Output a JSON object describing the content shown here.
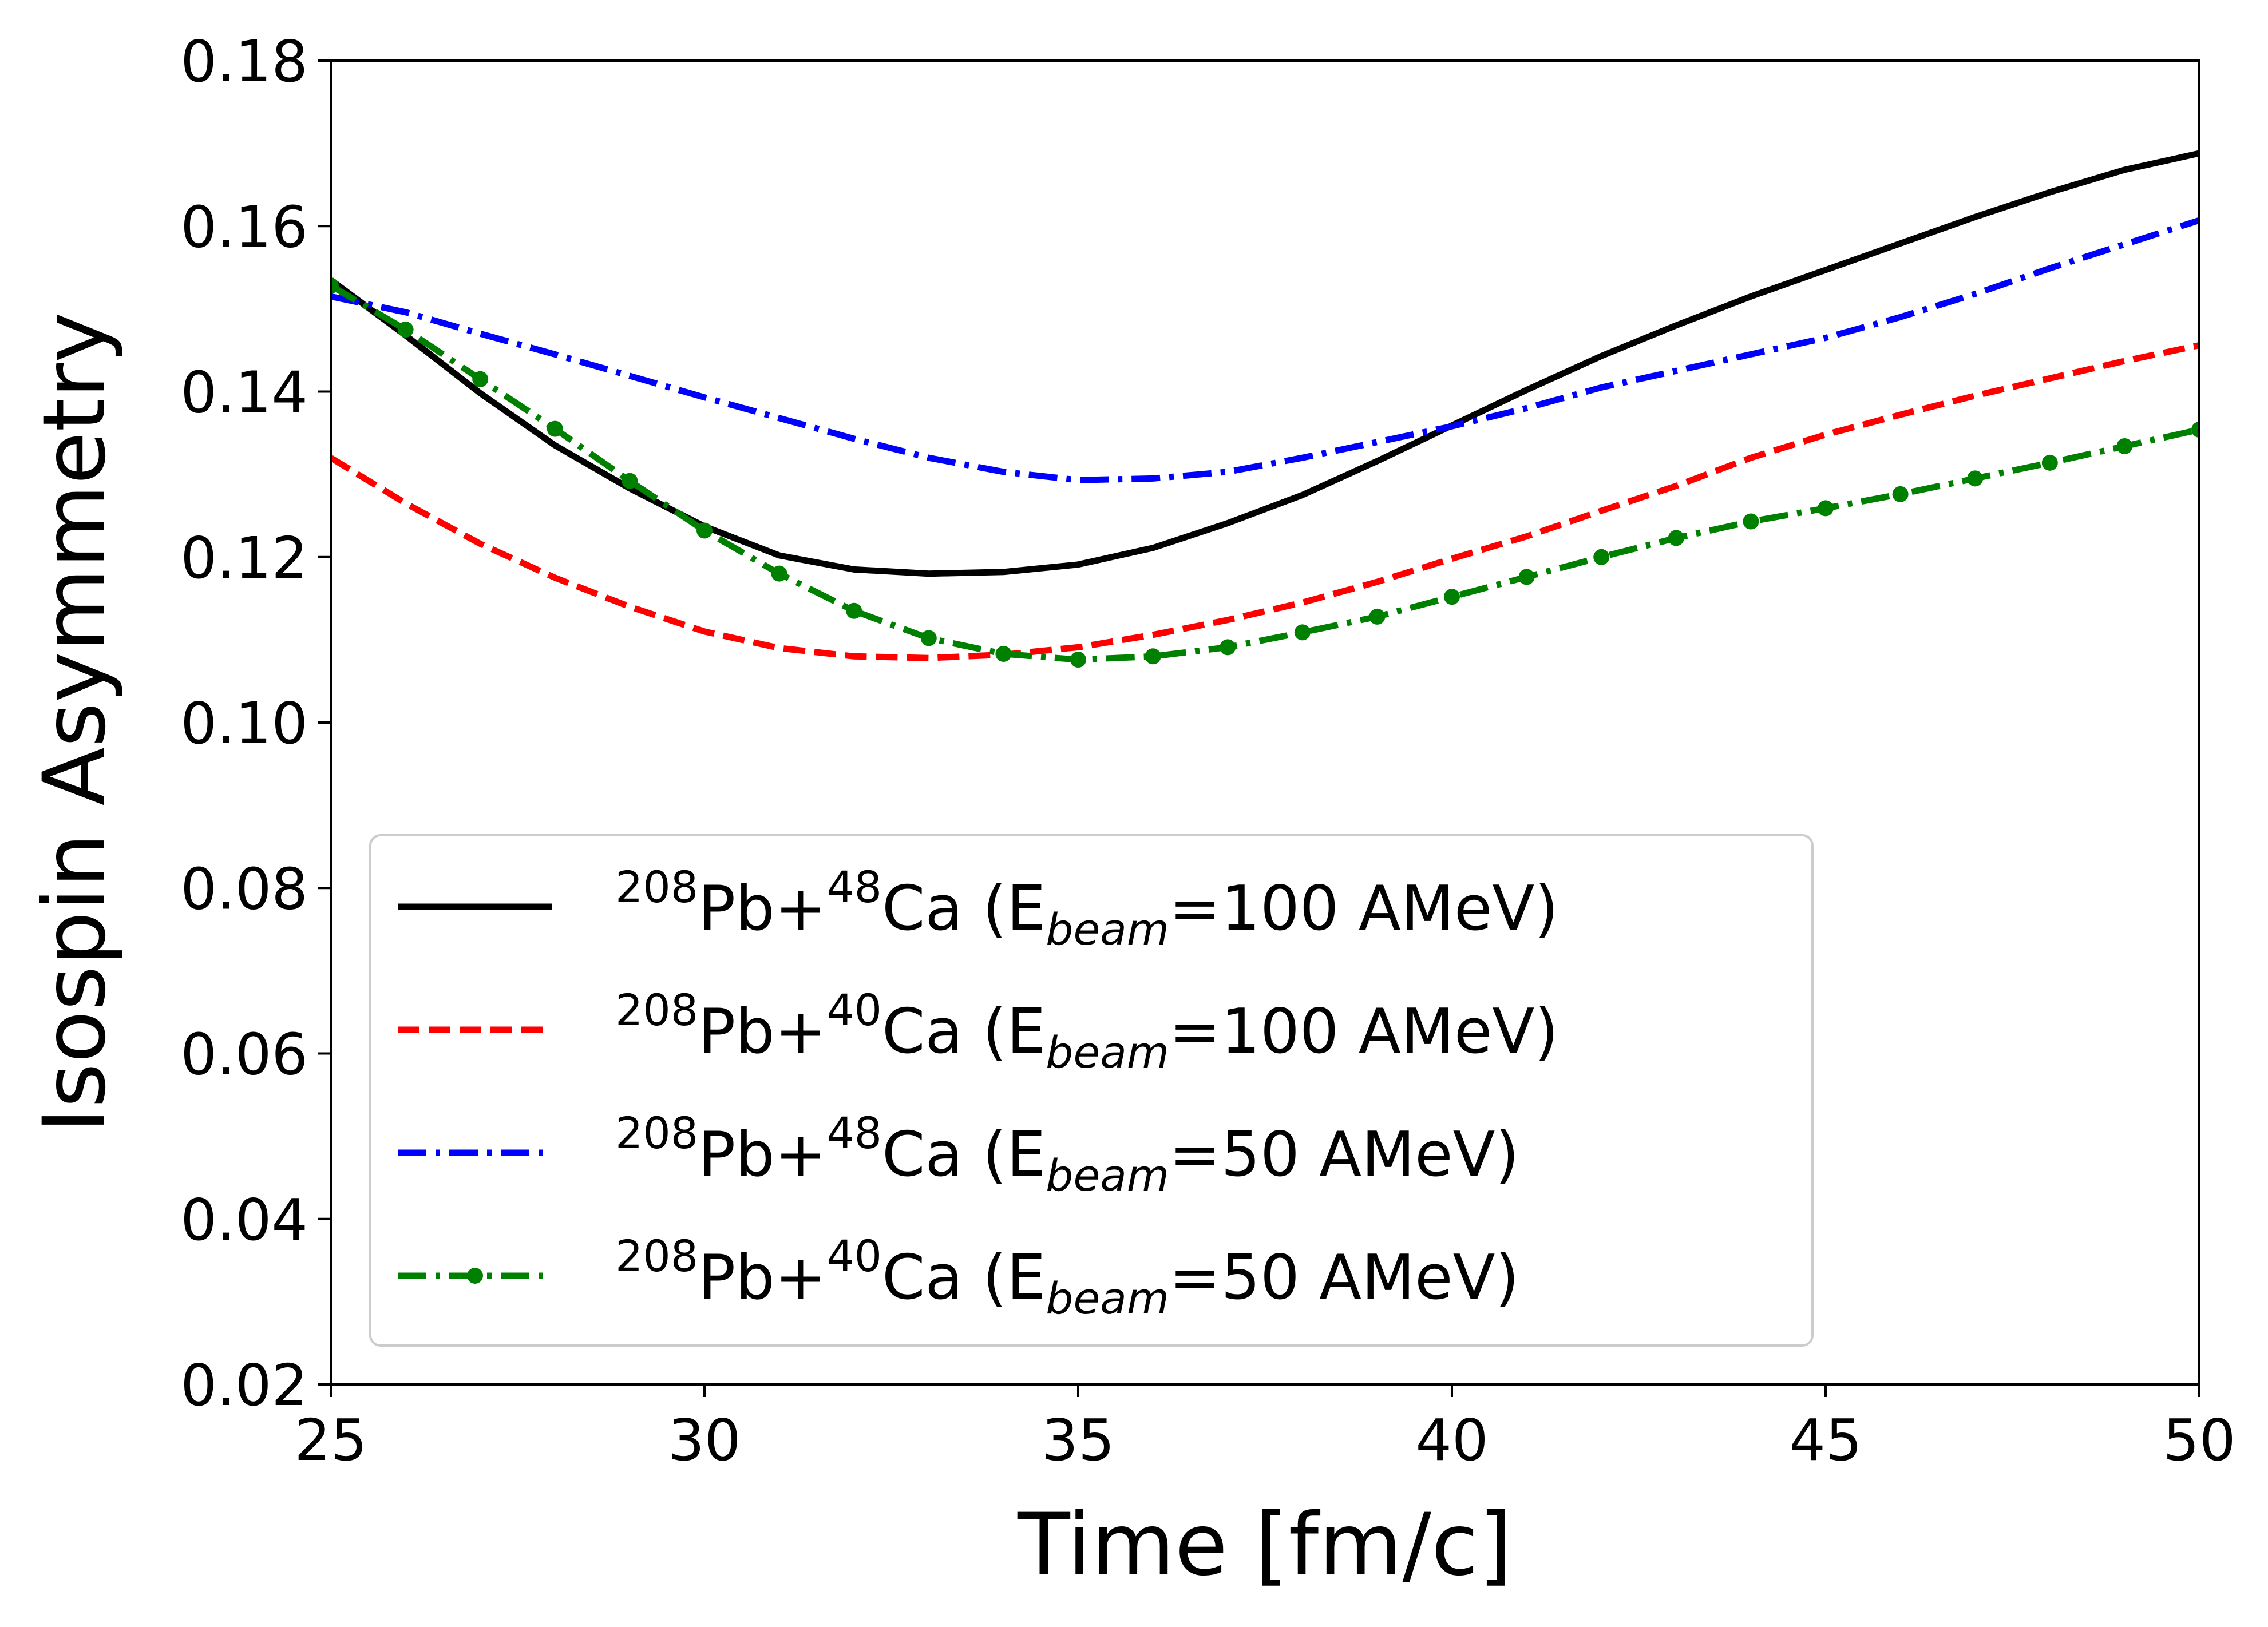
{
  "chart_data": {
    "type": "line",
    "xlabel": "Time [fm/c]",
    "ylabel": "Isospin Asymmetry",
    "xlim": [
      25,
      50
    ],
    "ylim": [
      0.02,
      0.18
    ],
    "xticks": [
      25,
      30,
      35,
      40,
      45,
      50
    ],
    "xtick_labels": [
      "25",
      "30",
      "35",
      "40",
      "45",
      "50"
    ],
    "yticks": [
      0.02,
      0.04,
      0.06,
      0.08,
      0.1,
      0.12,
      0.14,
      0.16,
      0.18
    ],
    "ytick_labels": [
      "0.02",
      "0.04",
      "0.06",
      "0.08",
      "0.10",
      "0.12",
      "0.14",
      "0.16",
      "0.18"
    ],
    "grid": false,
    "legend_position": "lower-left",
    "series": [
      {
        "legend": {
          "a1": "208",
          "el1": "Pb+",
          "a2": "48",
          "el2": "Ca (E",
          "sub": "beam",
          "tail": "=100 AMeV)"
        },
        "color": "#000000",
        "style": "solid",
        "x": [
          25,
          26,
          27,
          28,
          29,
          30,
          31,
          32,
          33,
          34,
          35,
          36,
          37,
          38,
          39,
          40,
          41,
          42,
          43,
          44,
          45,
          46,
          47,
          48,
          49,
          50
        ],
        "y": [
          0.1535,
          0.1468,
          0.1398,
          0.1335,
          0.1283,
          0.1237,
          0.1202,
          0.1185,
          0.118,
          0.1182,
          0.1191,
          0.1211,
          0.1241,
          0.1275,
          0.1316,
          0.1359,
          0.1402,
          0.1443,
          0.148,
          0.1515,
          0.1547,
          0.1579,
          0.1611,
          0.1641,
          0.1668,
          0.1688
        ]
      },
      {
        "legend": {
          "a1": "208",
          "el1": "Pb+",
          "a2": "40",
          "el2": "Ca (E",
          "sub": "beam",
          "tail": "=100 AMeV)"
        },
        "color": "#ff0000",
        "style": "dashed",
        "x": [
          25,
          26,
          27,
          28,
          29,
          30,
          31,
          32,
          33,
          34,
          35,
          36,
          37,
          38,
          39,
          40,
          41,
          42,
          43,
          44,
          45,
          46,
          47,
          48,
          49,
          50
        ],
        "y": [
          0.132,
          0.1265,
          0.1216,
          0.1175,
          0.114,
          0.111,
          0.109,
          0.108,
          0.1078,
          0.1082,
          0.1091,
          0.1106,
          0.1124,
          0.1145,
          0.117,
          0.1198,
          0.1225,
          0.1256,
          0.1286,
          0.132,
          0.1348,
          0.1372,
          0.1395,
          0.1416,
          0.1437,
          0.1456
        ]
      },
      {
        "legend": {
          "a1": "208",
          "el1": "Pb+",
          "a2": "48",
          "el2": "Ca (E",
          "sub": "beam",
          "tail": "=50 AMeV)"
        },
        "color": "#0000ff",
        "style": "dashdot",
        "x": [
          25,
          26,
          27,
          28,
          29,
          30,
          31,
          32,
          33,
          34,
          35,
          36,
          37,
          38,
          39,
          40,
          41,
          42,
          43,
          44,
          45,
          46,
          47,
          48,
          49,
          50
        ],
        "y": [
          0.1515,
          0.1496,
          0.147,
          0.1445,
          0.1419,
          0.1393,
          0.1368,
          0.1343,
          0.132,
          0.1303,
          0.1293,
          0.1295,
          0.1303,
          0.132,
          0.1339,
          0.1358,
          0.138,
          0.1405,
          0.1425,
          0.1445,
          0.1465,
          0.149,
          0.1518,
          0.1549,
          0.1578,
          0.1607
        ]
      },
      {
        "legend": {
          "a1": "208",
          "el1": "Pb+",
          "a2": "40",
          "el2": "Ca (E",
          "sub": "beam",
          "tail": "=50 AMeV)"
        },
        "color": "#008000",
        "style": "dashdot-marker",
        "x": [
          25,
          26,
          27,
          28,
          29,
          30,
          31,
          32,
          33,
          34,
          35,
          36,
          37,
          38,
          39,
          40,
          41,
          42,
          43,
          44,
          45,
          46,
          47,
          48,
          49,
          50
        ],
        "y": [
          0.1528,
          0.1475,
          0.1415,
          0.1355,
          0.1292,
          0.1232,
          0.118,
          0.1135,
          0.1102,
          0.1083,
          0.1076,
          0.108,
          0.1091,
          0.1109,
          0.1128,
          0.1152,
          0.1176,
          0.12,
          0.1223,
          0.1243,
          0.1259,
          0.1276,
          0.1295,
          0.1314,
          0.1334,
          0.1354
        ]
      }
    ]
  }
}
